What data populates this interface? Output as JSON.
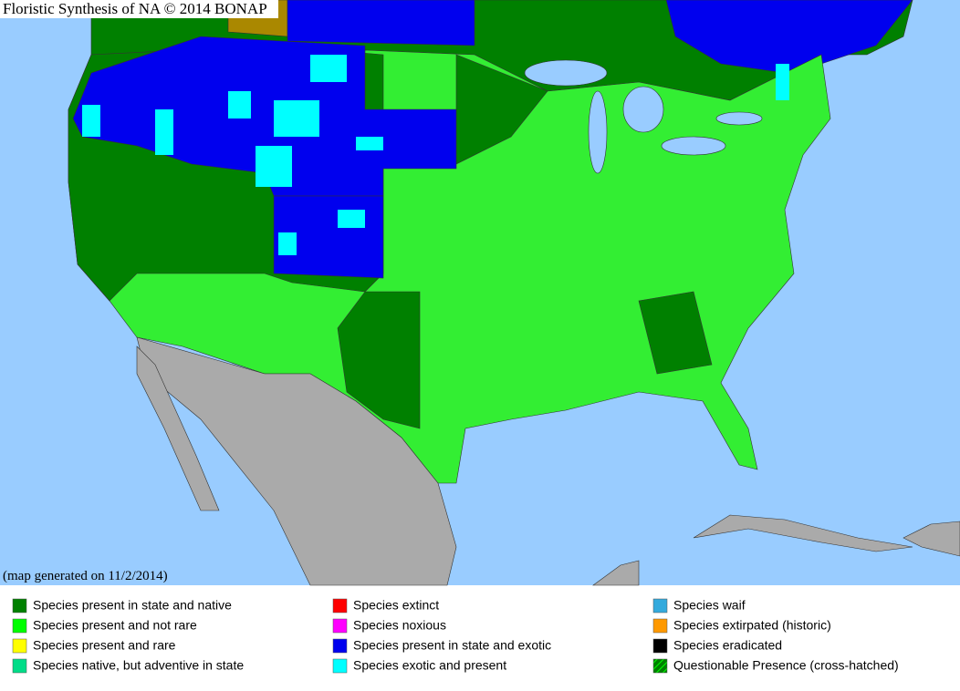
{
  "map": {
    "title": "Floristic Synthesis of NA © 2014 BONAP",
    "note": "(map generated on 11/2/2014)"
  },
  "legend": [
    {
      "label": "Species present in state and native",
      "color": "#008000"
    },
    {
      "label": "Species present and not rare",
      "color": "#00ff00"
    },
    {
      "label": "Species present and rare",
      "color": "#ffff00"
    },
    {
      "label": "Species native, but adventive in state",
      "color": "#00dd88"
    },
    {
      "label": "Species extinct",
      "color": "#ff0000"
    },
    {
      "label": "Species noxious",
      "color": "#ff00ff"
    },
    {
      "label": "Species present in state and exotic",
      "color": "#0000ee"
    },
    {
      "label": "Species exotic and present",
      "color": "#00ffff"
    },
    {
      "label": "Species waif",
      "color": "#33aadd"
    },
    {
      "label": "Species extirpated (historic)",
      "color": "#ff9900"
    },
    {
      "label": "Species eradicated",
      "color": "#000000"
    },
    {
      "label": "Questionable Presence (cross-hatched)",
      "color": "#008000",
      "hatched": true
    }
  ]
}
